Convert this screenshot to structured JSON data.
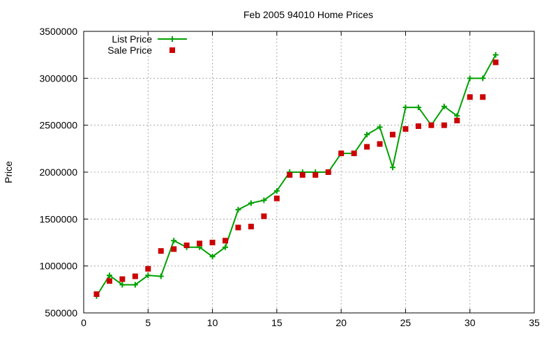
{
  "chart_data": {
    "type": "line",
    "title": "Feb 2005 94010 Home Prices",
    "xlabel": "",
    "ylabel": "Price",
    "xlim": [
      0,
      35
    ],
    "ylim": [
      500000,
      3500000
    ],
    "xticks": [
      0,
      5,
      10,
      15,
      20,
      25,
      30,
      35
    ],
    "yticks": [
      500000,
      1000000,
      1500000,
      2000000,
      2500000,
      3000000,
      3500000
    ],
    "grid": true,
    "legend_position": "top-left",
    "series": [
      {
        "name": "List Price",
        "style": "line-with-plus-markers",
        "color": "#00a000",
        "x": [
          1,
          2,
          3,
          4,
          5,
          6,
          7,
          8,
          9,
          10,
          11,
          12,
          13,
          14,
          15,
          16,
          17,
          18,
          19,
          20,
          21,
          22,
          23,
          24,
          25,
          26,
          27,
          28,
          29,
          30,
          31,
          32
        ],
        "y": [
          680000,
          900000,
          800000,
          800000,
          900000,
          890000,
          1270000,
          1200000,
          1200000,
          1100000,
          1200000,
          1600000,
          1670000,
          1700000,
          1800000,
          2000000,
          2000000,
          2000000,
          2000000,
          2200000,
          2200000,
          2400000,
          2480000,
          2050000,
          2690000,
          2690000,
          2500000,
          2700000,
          2600000,
          3000000,
          3000000,
          3250000
        ]
      },
      {
        "name": "Sale Price",
        "style": "square-markers",
        "color": "#cc0000",
        "x": [
          1,
          2,
          3,
          4,
          5,
          6,
          7,
          8,
          9,
          10,
          11,
          12,
          13,
          14,
          15,
          16,
          17,
          18,
          19,
          20,
          21,
          22,
          23,
          24,
          25,
          26,
          27,
          28,
          29,
          30,
          31,
          32
        ],
        "y": [
          700000,
          840000,
          860000,
          890000,
          970000,
          1160000,
          1180000,
          1220000,
          1240000,
          1250000,
          1270000,
          1410000,
          1420000,
          1530000,
          1720000,
          1970000,
          1970000,
          1970000,
          2000000,
          2200000,
          2200000,
          2270000,
          2300000,
          2400000,
          2460000,
          2490000,
          2500000,
          2500000,
          2550000,
          2800000,
          2800000,
          3170000
        ]
      }
    ]
  }
}
